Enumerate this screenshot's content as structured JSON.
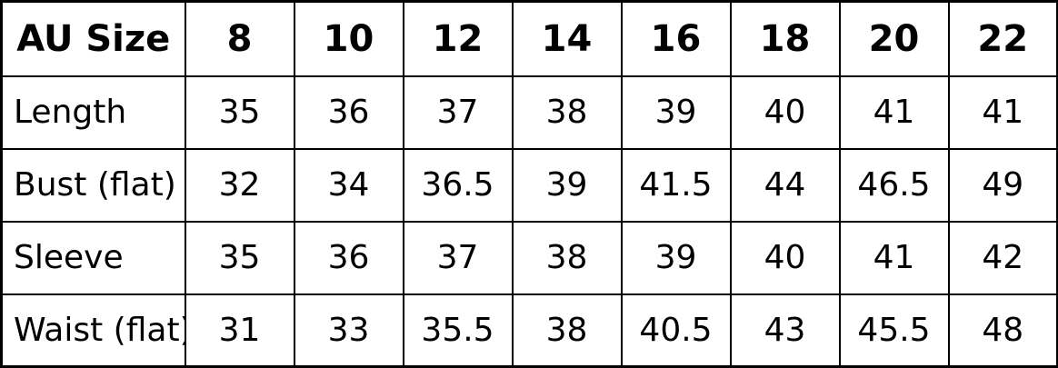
{
  "colors": {
    "border": "#000000",
    "text": "#000000",
    "background": "#ffffff"
  },
  "chart_data": {
    "type": "table",
    "header": [
      "AU Size",
      "8",
      "10",
      "12",
      "14",
      "16",
      "18",
      "20",
      "22"
    ],
    "rows": [
      {
        "label": "Length",
        "values": [
          "35",
          "36",
          "37",
          "38",
          "39",
          "40",
          "41",
          "41"
        ]
      },
      {
        "label": "Bust (flat)",
        "values": [
          "32",
          "34",
          "36.5",
          "39",
          "41.5",
          "44",
          "46.5",
          "49"
        ]
      },
      {
        "label": "Sleeve",
        "values": [
          "35",
          "36",
          "37",
          "38",
          "39",
          "40",
          "41",
          "42"
        ]
      },
      {
        "label": "Waist (flat)",
        "values": [
          "31",
          "33",
          "35.5",
          "38",
          "40.5",
          "43",
          "45.5",
          "48"
        ]
      }
    ]
  }
}
